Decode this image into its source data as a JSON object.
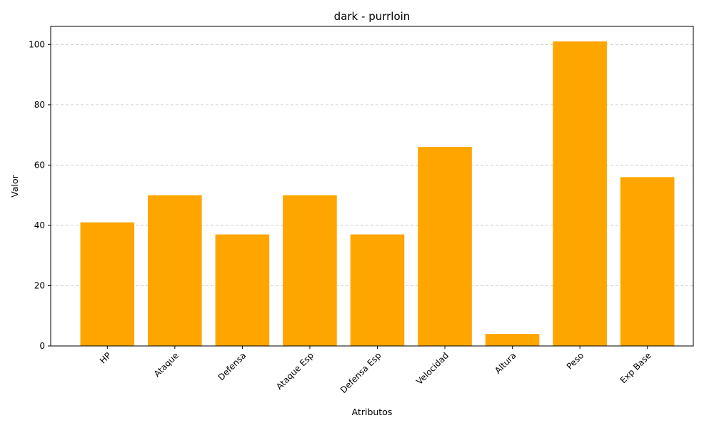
{
  "chart_data": {
    "type": "bar",
    "title": "dark - purrloin",
    "xlabel": "Atributos",
    "ylabel": "Valor",
    "categories": [
      "HP",
      "Ataque",
      "Defensa",
      "Ataque Esp",
      "Defensa Esp",
      "Velocidad",
      "Altura",
      "Peso",
      "Exp Base"
    ],
    "values": [
      41,
      50,
      37,
      50,
      37,
      66,
      4,
      101,
      56
    ],
    "ylim": [
      0,
      106
    ],
    "yticks": [
      0,
      20,
      40,
      60,
      80,
      100
    ],
    "grid": "y-dashed",
    "bar_color": "#FFA500",
    "tick_label_rotation": "45deg"
  }
}
